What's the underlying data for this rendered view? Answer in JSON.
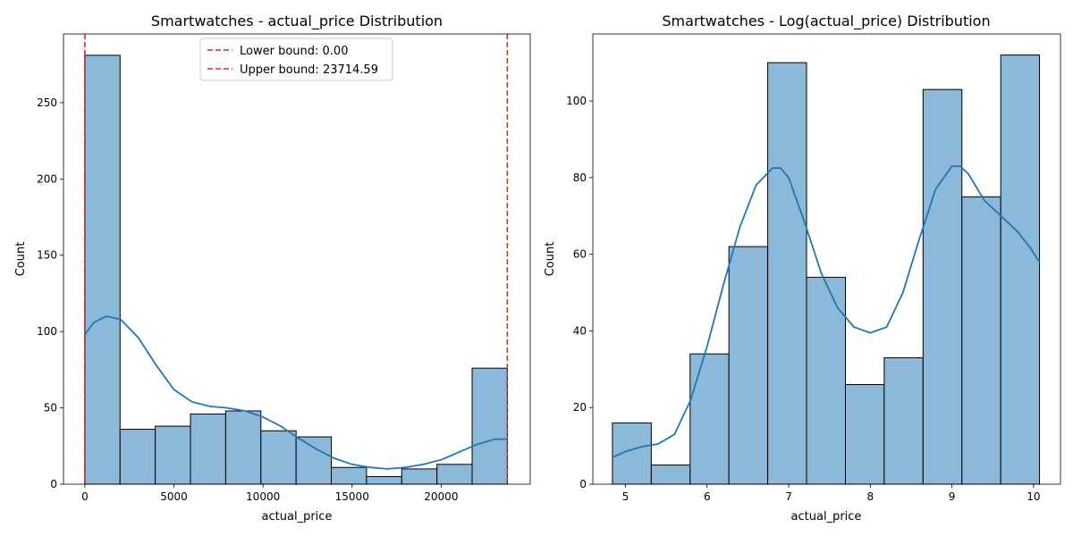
{
  "chart_data": [
    {
      "type": "bar",
      "title": "Smartwatches - actual_price Distribution",
      "xlabel": "actual_price",
      "ylabel": "Count",
      "xlim": [
        -1200,
        25000
      ],
      "ylim": [
        0,
        295
      ],
      "x_ticks": [
        0,
        5000,
        10000,
        15000,
        20000
      ],
      "x_tick_labels": [
        "0",
        "5000",
        "10000",
        "15000",
        "20000"
      ],
      "y_ticks": [
        0,
        50,
        100,
        150,
        200,
        250
      ],
      "y_tick_labels": [
        "0",
        "50",
        "100",
        "150",
        "200",
        "250"
      ],
      "bins": [
        {
          "x0": 0,
          "x1": 1976,
          "count": 281
        },
        {
          "x0": 1976,
          "x1": 3952,
          "count": 36
        },
        {
          "x0": 3952,
          "x1": 5929,
          "count": 38
        },
        {
          "x0": 5929,
          "x1": 7905,
          "count": 46
        },
        {
          "x0": 7905,
          "x1": 9881,
          "count": 48
        },
        {
          "x0": 9881,
          "x1": 11857,
          "count": 35
        },
        {
          "x0": 11857,
          "x1": 13834,
          "count": 31
        },
        {
          "x0": 13834,
          "x1": 15810,
          "count": 11
        },
        {
          "x0": 15810,
          "x1": 17786,
          "count": 5
        },
        {
          "x0": 17786,
          "x1": 19762,
          "count": 10
        },
        {
          "x0": 19762,
          "x1": 21738,
          "count": 13
        },
        {
          "x0": 21738,
          "x1": 23715,
          "count": 76
        }
      ],
      "kde": [
        [
          0,
          98
        ],
        [
          500,
          106
        ],
        [
          1200,
          110
        ],
        [
          2000,
          108
        ],
        [
          3000,
          96
        ],
        [
          4000,
          78
        ],
        [
          5000,
          62
        ],
        [
          6000,
          54
        ],
        [
          7000,
          51
        ],
        [
          8000,
          50
        ],
        [
          9000,
          48
        ],
        [
          10000,
          44
        ],
        [
          11000,
          38
        ],
        [
          12000,
          30
        ],
        [
          13000,
          23
        ],
        [
          14000,
          17
        ],
        [
          15000,
          13
        ],
        [
          16000,
          11
        ],
        [
          17000,
          10
        ],
        [
          18000,
          11
        ],
        [
          19000,
          13
        ],
        [
          20000,
          16
        ],
        [
          21000,
          21
        ],
        [
          22000,
          26
        ],
        [
          23000,
          29.5
        ],
        [
          23714,
          29.5
        ]
      ],
      "reference_lines": [
        {
          "x": 0,
          "label": "Lower bound: 0.00",
          "color": "#d62728"
        },
        {
          "x": 23714.59,
          "label": "Upper bound: 23714.59",
          "color": "#d62728"
        }
      ],
      "legend_position": "upper center",
      "bar_color": "#8cb8d9",
      "line_color": "#1f77b4"
    },
    {
      "type": "bar",
      "title": "Smartwatches - Log(actual_price) Distribution",
      "xlabel": "actual_price",
      "ylabel": "Count",
      "xlim": [
        4.6,
        10.33
      ],
      "ylim": [
        0,
        117.5
      ],
      "x_ticks": [
        5,
        6,
        7,
        8,
        9,
        10
      ],
      "x_tick_labels": [
        "5",
        "6",
        "7",
        "8",
        "9",
        "10"
      ],
      "y_ticks": [
        0,
        20,
        40,
        60,
        80,
        100
      ],
      "y_tick_labels": [
        "0",
        "20",
        "40",
        "60",
        "80",
        "100"
      ],
      "bins": [
        {
          "x0": 4.84,
          "x1": 5.316,
          "count": 16
        },
        {
          "x0": 5.316,
          "x1": 5.792,
          "count": 5
        },
        {
          "x0": 5.792,
          "x1": 6.267,
          "count": 34
        },
        {
          "x0": 6.267,
          "x1": 6.743,
          "count": 62
        },
        {
          "x0": 6.743,
          "x1": 7.219,
          "count": 110
        },
        {
          "x0": 7.219,
          "x1": 7.695,
          "count": 54
        },
        {
          "x0": 7.695,
          "x1": 8.17,
          "count": 26
        },
        {
          "x0": 8.17,
          "x1": 8.646,
          "count": 33
        },
        {
          "x0": 8.646,
          "x1": 9.122,
          "count": 103
        },
        {
          "x0": 9.122,
          "x1": 9.598,
          "count": 75
        },
        {
          "x0": 9.598,
          "x1": 10.073,
          "count": 112
        }
      ],
      "kde": [
        [
          4.84,
          7
        ],
        [
          5.0,
          8.5
        ],
        [
          5.2,
          9.8
        ],
        [
          5.4,
          10.5
        ],
        [
          5.6,
          13
        ],
        [
          5.8,
          22
        ],
        [
          6.0,
          36
        ],
        [
          6.2,
          52
        ],
        [
          6.4,
          67
        ],
        [
          6.6,
          78
        ],
        [
          6.8,
          82.5
        ],
        [
          6.9,
          82.5
        ],
        [
          7.0,
          80
        ],
        [
          7.2,
          68
        ],
        [
          7.4,
          55
        ],
        [
          7.6,
          46
        ],
        [
          7.8,
          41
        ],
        [
          8.0,
          39.5
        ],
        [
          8.2,
          41
        ],
        [
          8.4,
          50
        ],
        [
          8.6,
          64
        ],
        [
          8.8,
          77
        ],
        [
          9.0,
          83
        ],
        [
          9.1,
          83
        ],
        [
          9.2,
          81
        ],
        [
          9.4,
          74
        ],
        [
          9.6,
          70
        ],
        [
          9.8,
          66
        ],
        [
          9.95,
          62
        ],
        [
          10.073,
          58
        ]
      ],
      "bar_color": "#8cb8d9",
      "line_color": "#1f77b4"
    }
  ]
}
